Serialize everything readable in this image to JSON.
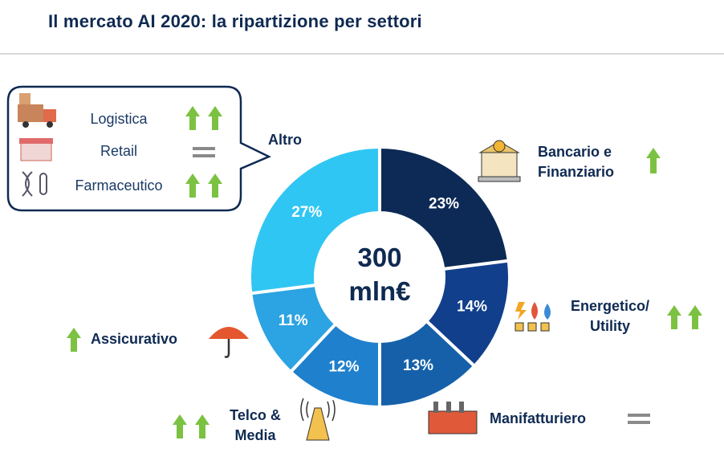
{
  "chart_data": {
    "type": "donut",
    "title": "Il mercato AI 2020: la ripartizione per settori",
    "center_label": "300\nmln€",
    "categories": [
      "Bancario e\nFinanziario",
      "Energetico/\nUtility",
      "Manifatturiero",
      "Telco &\nMedia",
      "Assicurativo",
      "Altro"
    ],
    "values": [
      23,
      14,
      13,
      12,
      11,
      27
    ],
    "value_labels": [
      "23%",
      "14%",
      "13%",
      "12%",
      "11%",
      "27%"
    ],
    "colors": [
      "#0c2a55",
      "#113f8c",
      "#1560a9",
      "#1f80cd",
      "#2ca3e2",
      "#30c6f3"
    ]
  },
  "callout": {
    "items": [
      "Logistica",
      "Retail",
      "Farmaceutico"
    ]
  }
}
